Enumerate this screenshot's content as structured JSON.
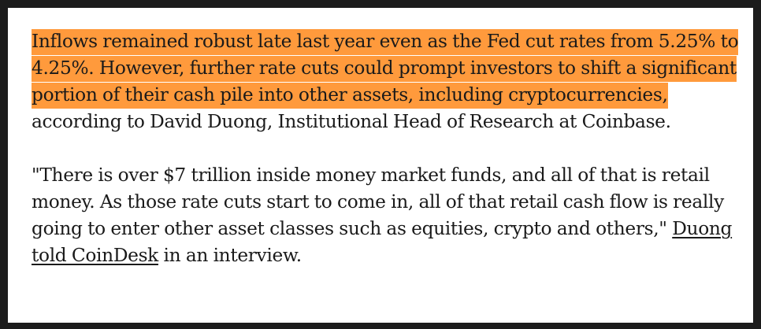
{
  "article": {
    "paragraph1": {
      "highlighted": "Inflows remained robust late last year even as the Fed cut rates from 5.25% to 4.25%. However, further rate cuts could prompt investors to shift a significant portion of their cash pile into other assets, including cryptocurrencies,",
      "rest": " according to David Duong, Institutional Head of Research at Coinbase."
    },
    "paragraph2": {
      "quote": "\"There is over $7 trillion inside money market funds, and all of that is retail money. As those rate cuts start to come in, all of that retail cash flow is really going to enter other asset classes such as equities, crypto and others,\" ",
      "link_text": "Duong told CoinDesk",
      "tail": " in an interview."
    }
  },
  "colors": {
    "highlight": "#ff9a3c",
    "frame": "#1c1c1c",
    "text": "#1a1a1a"
  }
}
